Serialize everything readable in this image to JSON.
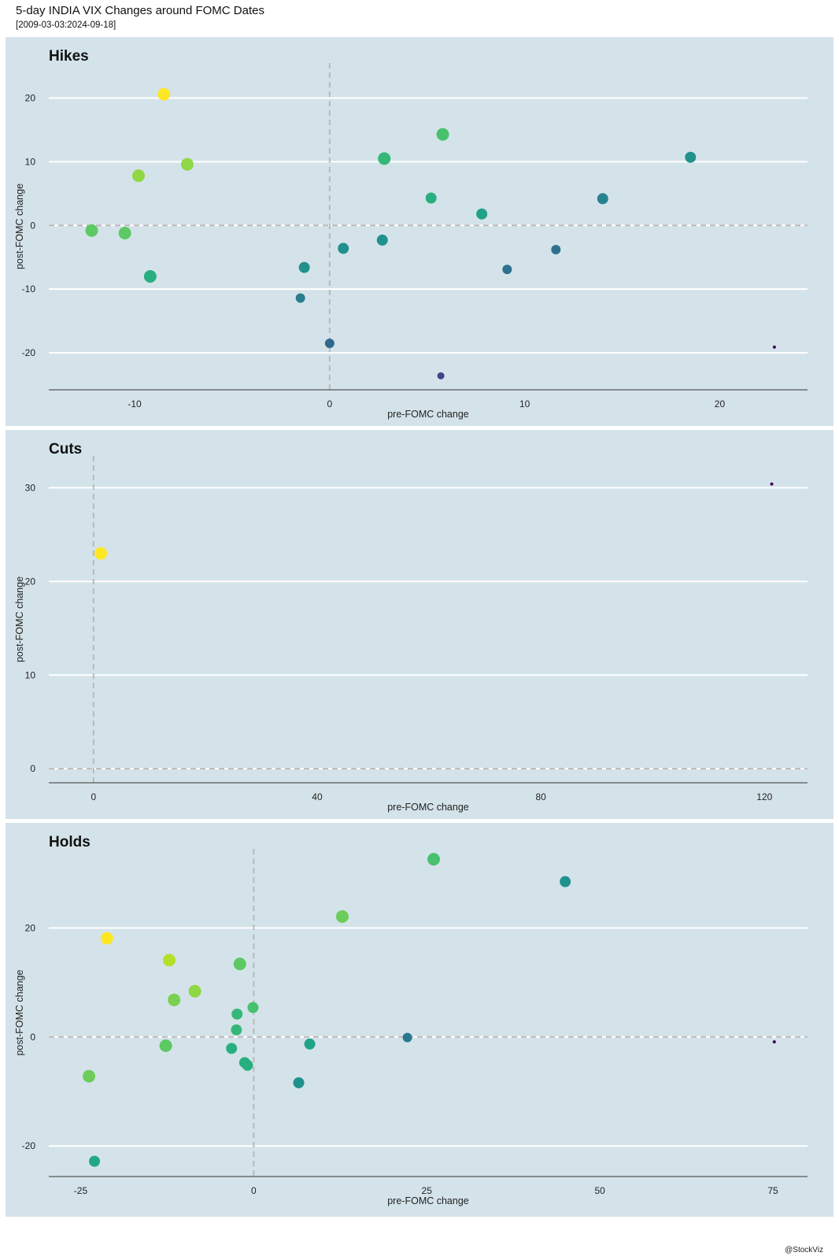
{
  "header": {
    "title": "5-day INDIA VIX Changes around FOMC Dates",
    "subtitle": "[2009-03-03:2024-09-18]"
  },
  "footer": {
    "credit": "@StockViz"
  },
  "colors": {
    "panel_bg": "#d4e3ea",
    "grid": "#ffffff",
    "zero_line": "#b9b9b9",
    "axis": "#333333",
    "palette": [
      "#440154",
      "#3b528b",
      "#21908d",
      "#5dc963",
      "#fde725"
    ]
  },
  "chart_data": [
    {
      "type": "scatter",
      "title": "Hikes",
      "xlabel": "pre-FOMC change",
      "ylabel": "post-FOMC change",
      "xlim": [
        -14.4,
        24.5
      ],
      "ylim": [
        -25.8,
        25.5
      ],
      "xticks": [
        -10,
        0,
        10,
        20
      ],
      "yticks": [
        -20,
        -10,
        0,
        10,
        20
      ],
      "grid": true,
      "legend": "none",
      "points": [
        {
          "x": -8.5,
          "y": 20.6,
          "color": "#fde725",
          "size": "large"
        },
        {
          "x": -9.8,
          "y": 7.8,
          "color": "#8fd744",
          "size": "large"
        },
        {
          "x": -7.3,
          "y": 9.6,
          "color": "#8fd744",
          "size": "large"
        },
        {
          "x": -12.2,
          "y": -0.8,
          "color": "#5dc963",
          "size": "large"
        },
        {
          "x": -10.5,
          "y": -1.2,
          "color": "#5dc963",
          "size": "large"
        },
        {
          "x": -9.2,
          "y": -8.0,
          "color": "#29af7f",
          "size": "large"
        },
        {
          "x": 5.8,
          "y": 14.3,
          "color": "#48c16e",
          "size": "large"
        },
        {
          "x": 2.8,
          "y": 10.5,
          "color": "#35b779",
          "size": "large"
        },
        {
          "x": 5.2,
          "y": 4.3,
          "color": "#29af7f",
          "size": "medium"
        },
        {
          "x": 7.8,
          "y": 1.8,
          "color": "#20a386",
          "size": "medium"
        },
        {
          "x": 0.7,
          "y": -3.6,
          "color": "#21908d",
          "size": "medium"
        },
        {
          "x": -1.3,
          "y": -6.6,
          "color": "#21918c",
          "size": "medium"
        },
        {
          "x": 2.7,
          "y": -2.3,
          "color": "#21918c",
          "size": "medium"
        },
        {
          "x": 14.0,
          "y": 4.2,
          "color": "#26828e",
          "size": "medium"
        },
        {
          "x": 18.5,
          "y": 10.7,
          "color": "#21918c",
          "size": "medium"
        },
        {
          "x": 11.6,
          "y": -3.8,
          "color": "#2c728e",
          "size": "small"
        },
        {
          "x": 9.1,
          "y": -6.9,
          "color": "#2c728e",
          "size": "small"
        },
        {
          "x": -1.5,
          "y": -11.4,
          "color": "#287d8e",
          "size": "small"
        },
        {
          "x": 0.0,
          "y": -18.5,
          "color": "#31688e",
          "size": "small"
        },
        {
          "x": 5.7,
          "y": -23.6,
          "color": "#414487",
          "size": "tiny"
        },
        {
          "x": 22.8,
          "y": -19.1,
          "color": "#440154",
          "size": "dot"
        }
      ]
    },
    {
      "type": "scatter",
      "title": "Cuts",
      "xlabel": "pre-FOMC change",
      "ylabel": "post-FOMC change",
      "xlim": [
        -8,
        127.7
      ],
      "ylim": [
        -1.5,
        33.4
      ],
      "xticks": [
        0,
        40,
        80,
        120
      ],
      "yticks": [
        0,
        10,
        20,
        30
      ],
      "grid": true,
      "legend": "none",
      "points": [
        {
          "x": 1.3,
          "y": 23.0,
          "color": "#fde725",
          "size": "large"
        },
        {
          "x": 121.3,
          "y": 30.4,
          "color": "#440154",
          "size": "dot"
        }
      ]
    },
    {
      "type": "scatter",
      "title": "Holds",
      "xlabel": "pre-FOMC change",
      "ylabel": "post-FOMC change",
      "xlim": [
        -29.6,
        80.0
      ],
      "ylim": [
        -25.6,
        34.5
      ],
      "xticks": [
        -25,
        0,
        25,
        50,
        75
      ],
      "yticks": [
        -20,
        0,
        20
      ],
      "grid": true,
      "legend": "none",
      "points": [
        {
          "x": -21.2,
          "y": 18.1,
          "color": "#fde725",
          "size": "large"
        },
        {
          "x": -12.2,
          "y": 14.1,
          "color": "#b5de2b",
          "size": "large"
        },
        {
          "x": -8.5,
          "y": 8.4,
          "color": "#8fd744",
          "size": "large"
        },
        {
          "x": -11.5,
          "y": 6.8,
          "color": "#7ad151",
          "size": "large"
        },
        {
          "x": 12.8,
          "y": 22.1,
          "color": "#6ccd5a",
          "size": "large"
        },
        {
          "x": -23.8,
          "y": -7.2,
          "color": "#6ccd5a",
          "size": "large"
        },
        {
          "x": -12.7,
          "y": -1.6,
          "color": "#5dc963",
          "size": "large"
        },
        {
          "x": -2.0,
          "y": 13.4,
          "color": "#5dc963",
          "size": "large"
        },
        {
          "x": 26.0,
          "y": 32.6,
          "color": "#48c16e",
          "size": "large"
        },
        {
          "x": -0.1,
          "y": 5.4,
          "color": "#48c16e",
          "size": "medium"
        },
        {
          "x": -2.4,
          "y": 4.2,
          "color": "#35b779",
          "size": "medium"
        },
        {
          "x": -2.5,
          "y": 1.3,
          "color": "#35b779",
          "size": "medium"
        },
        {
          "x": -3.2,
          "y": -2.1,
          "color": "#29af7f",
          "size": "medium"
        },
        {
          "x": -1.3,
          "y": -4.7,
          "color": "#29af7f",
          "size": "medium"
        },
        {
          "x": -0.9,
          "y": -5.2,
          "color": "#29af7f",
          "size": "medium"
        },
        {
          "x": 8.1,
          "y": -1.3,
          "color": "#20a386",
          "size": "medium"
        },
        {
          "x": -23.0,
          "y": -22.8,
          "color": "#22a884",
          "size": "medium"
        },
        {
          "x": 6.5,
          "y": -8.4,
          "color": "#21918c",
          "size": "medium"
        },
        {
          "x": 45.0,
          "y": 28.5,
          "color": "#21918c",
          "size": "medium"
        },
        {
          "x": 22.2,
          "y": -0.1,
          "color": "#2a788e",
          "size": "small"
        },
        {
          "x": 75.2,
          "y": -0.9,
          "color": "#440154",
          "size": "dot"
        }
      ]
    }
  ]
}
